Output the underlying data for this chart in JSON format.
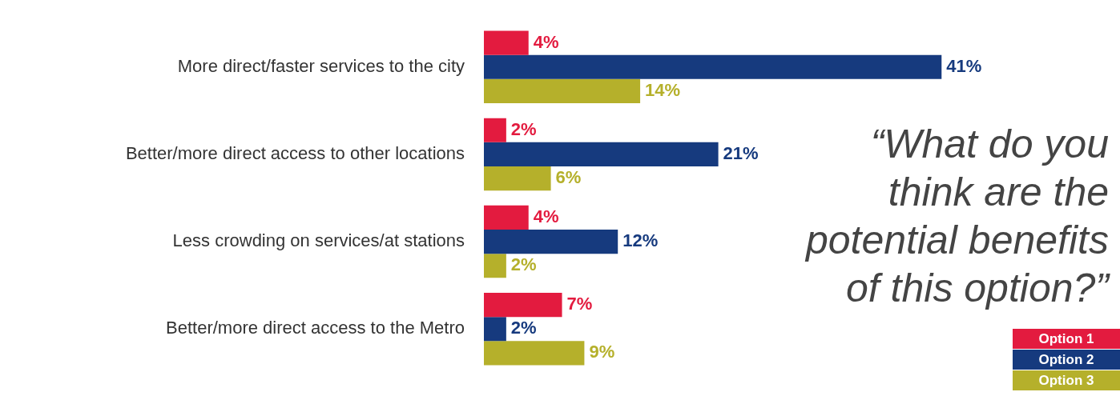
{
  "chart_data": {
    "type": "bar",
    "orientation": "horizontal",
    "title": "“What do you think are the potential benefits of this option?”",
    "categories": [
      "More direct/faster services to the city",
      "Better/more direct access to other locations",
      "Less crowding on services/at stations",
      "Better/more direct access to the Metro"
    ],
    "series": [
      {
        "name": "Option 1",
        "color": "#e31b3f",
        "values": [
          4,
          2,
          4,
          7
        ],
        "value_labels": [
          "4%",
          "2%",
          "4%",
          "7%"
        ]
      },
      {
        "name": "Option 2",
        "color": "#163a7e",
        "values": [
          41,
          21,
          12,
          2
        ],
        "value_labels": [
          "41%",
          "21%",
          "12%",
          "2%"
        ]
      },
      {
        "name": "Option 3",
        "color": "#b5b02b",
        "values": [
          14,
          6,
          2,
          9
        ],
        "value_labels": [
          "14%",
          "6%",
          "2%",
          "9%"
        ]
      }
    ],
    "legend": "bottom right"
  }
}
